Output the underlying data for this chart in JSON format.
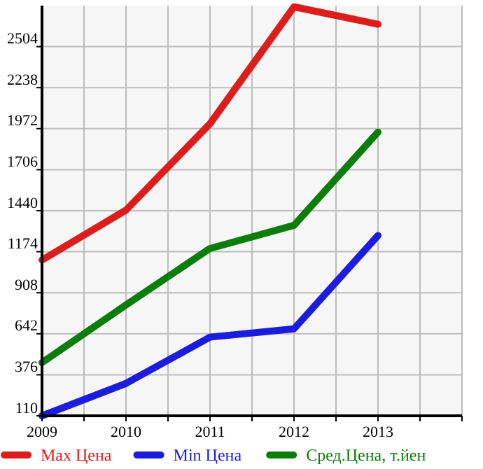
{
  "chart_data": {
    "type": "line",
    "x": [
      2009,
      2010,
      2011,
      2012,
      2013
    ],
    "series": [
      {
        "name": "Max Цена",
        "color": "#dd1c1c",
        "values": [
          1120,
          1444,
          2004,
          2762,
          2649
        ]
      },
      {
        "name": "Min Цена",
        "color": "#1c1cdd",
        "values": [
          110,
          320,
          620,
          674,
          1279
        ]
      },
      {
        "name": "Сред.Цена, т.йен",
        "color": "#0a7d0a",
        "values": [
          455,
          829,
          1195,
          1345,
          1950
        ]
      }
    ],
    "xlim": [
      2009,
      2014
    ],
    "xticks": [
      2009,
      {
        "value": 2009.5,
        "label": null
      },
      2010,
      {
        "value": 2010.5,
        "label": null
      },
      2011,
      {
        "value": 2011.5,
        "label": null
      },
      2012,
      {
        "value": 2012.5,
        "label": null
      },
      2013,
      {
        "value": 2013.5,
        "label": null
      },
      {
        "value": 2014,
        "label": null
      }
    ],
    "ylim": [
      110,
      2770
    ],
    "yticks": [
      110,
      376,
      642,
      908,
      1174,
      1440,
      1706,
      1972,
      2238,
      2504
    ],
    "grid": true,
    "legend": "bottom",
    "marker": "none",
    "line_style": "solid"
  }
}
